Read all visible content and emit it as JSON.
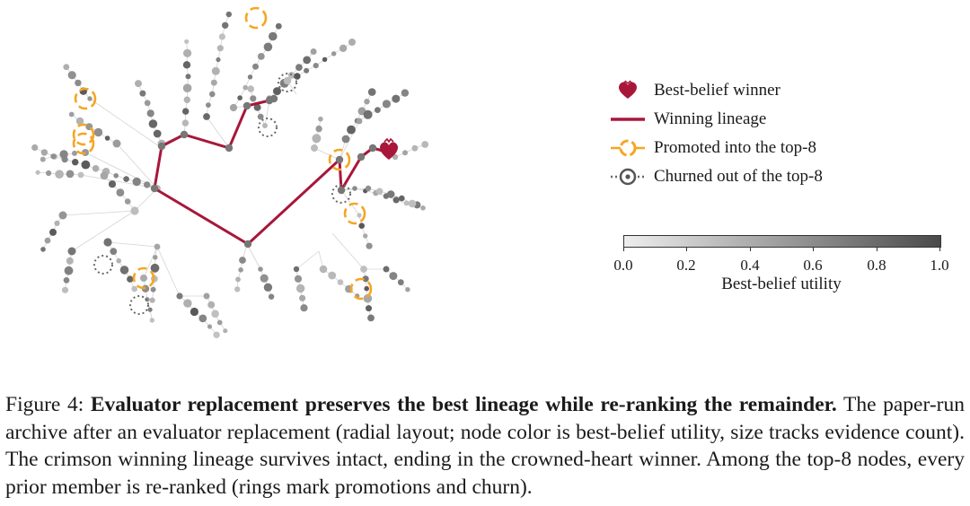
{
  "legend": {
    "winner": "Best-belief winner",
    "lineage": "Winning lineage",
    "promoted": "Promoted into the top-8",
    "churned": "Churned out of the top-8"
  },
  "colorbar": {
    "title": "Best-belief utility",
    "ticks": [
      "0.0",
      "0.2",
      "0.4",
      "0.6",
      "0.8",
      "1.0"
    ],
    "range": [
      0.0,
      1.0
    ],
    "color_low": "#eeeeee",
    "color_high": "#4a4a4a"
  },
  "colors": {
    "lineage": "#a8173a",
    "promoted_ring": "#f5a623",
    "churned_ring": "#555555"
  },
  "caption": {
    "prefix": "Figure 4: ",
    "bold": "Evaluator replacement preserves the best lineage while re-ranking the remainder.",
    "text": " The paper-run archive after an evaluator replacement (radial layout; node color is best-belief utility, size tracks evidence count). The crimson winning lineage survives intact, ending in the crowned-heart winner. Among the top-8 nodes, every prior member is re-ranked (rings mark promotions and churn)."
  }
}
